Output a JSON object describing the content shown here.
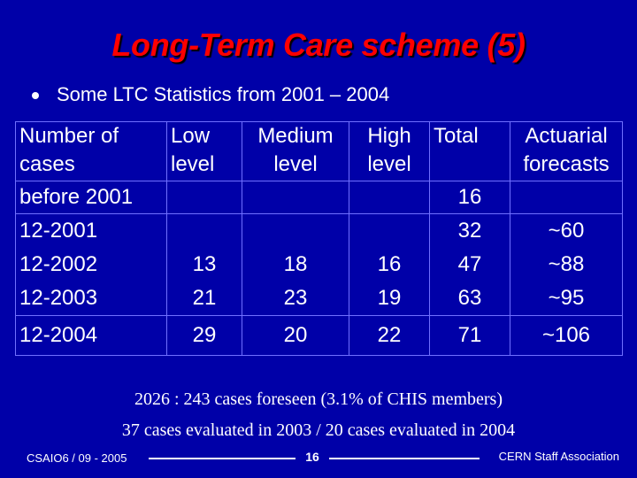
{
  "slide": {
    "title": "Long-Term Care scheme (5)",
    "bullet": "Some LTC Statistics from 2001 – 2004"
  },
  "table": {
    "header": [
      "Number of\ncases",
      "Low\nlevel",
      "Medium\nlevel",
      "High\nlevel",
      "Total",
      "Actuarial\nforecasts"
    ],
    "row_before_2001": [
      "before 2001",
      "",
      "",
      "",
      "16",
      ""
    ],
    "block_rows": [
      [
        "12-2001",
        "",
        "",
        "",
        "32",
        "~60"
      ],
      [
        "12-2002",
        "13",
        "18",
        "16",
        "47",
        "~88"
      ],
      [
        "12-2003",
        "21",
        "23",
        "19",
        "63",
        "~95"
      ]
    ],
    "row_2004": [
      "12-2004",
      "29",
      "20",
      "22",
      "71",
      "~106"
    ]
  },
  "notes": {
    "line1": "2026 : 243 cases foreseen  (3.1% of CHIS members)",
    "line2": "37 cases evaluated in 2003 / 20 cases evaluated in 2004"
  },
  "footer": {
    "left": "CSAIO6 / 09 - 2005",
    "page": "16",
    "right": "CERN Staff Association"
  },
  "colors": {
    "background": "#0000a8",
    "title": "#ff0000",
    "text": "#ffffff"
  }
}
